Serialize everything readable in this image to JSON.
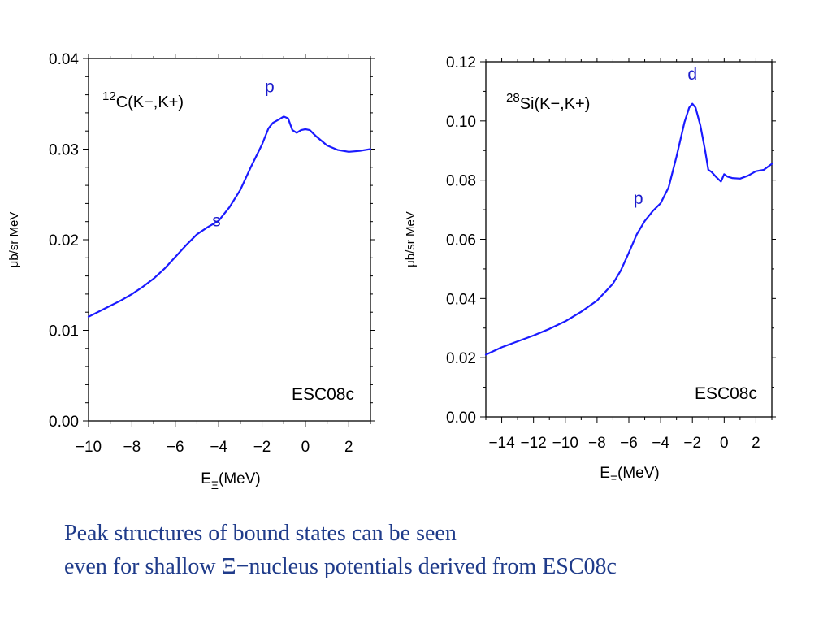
{
  "colors": {
    "curve": "#1a1aff",
    "peak_label": "#1a1acc",
    "caption": "#1f3b8a",
    "axis": "#000000"
  },
  "caption": {
    "line1": "Peak structures of bound states can be seen",
    "line2": "even for shallow Ξ−nucleus potentials derived from ESC08c"
  },
  "chart_data": [
    {
      "type": "line",
      "title_mass": "12",
      "title_rest": "C(K−,K+)",
      "xlabel_main": "E",
      "xlabel_sub": "Ξ",
      "xlabel_unit": "(MeV)",
      "ylabel": "μb/sr MeV",
      "model_label": "ESC08c",
      "xlim": [
        -10,
        3
      ],
      "ylim": [
        0,
        0.04
      ],
      "xticks": [
        "−10",
        "−8",
        "−6",
        "−4",
        "−2",
        "0",
        "2"
      ],
      "yticks": [
        "0.00",
        "0.01",
        "0.02",
        "0.03",
        "0.04"
      ],
      "grid": false,
      "peak_labels": [
        {
          "text": "s",
          "x": -4.1,
          "y": 0.0215
        },
        {
          "text": "p",
          "x": -1.65,
          "y": 0.0363
        }
      ],
      "series": [
        {
          "x": [
            -10,
            -9.5,
            -9,
            -8.5,
            -8,
            -7.5,
            -7,
            -6.5,
            -6,
            -5.5,
            -5,
            -4.5,
            -4,
            -3.5,
            -3,
            -2.5,
            -2,
            -1.7,
            -1.5,
            -1.35,
            -1.2,
            -1,
            -0.8,
            -0.6,
            -0.4,
            -0.2,
            0,
            0.2,
            0.5,
            1,
            1.5,
            2,
            2.5,
            3
          ],
          "y": [
            0.0115,
            0.0121,
            0.0127,
            0.0133,
            0.014,
            0.0148,
            0.0157,
            0.0168,
            0.0181,
            0.0194,
            0.0206,
            0.0214,
            0.0221,
            0.0236,
            0.0255,
            0.0281,
            0.0305,
            0.0323,
            0.0329,
            0.0331,
            0.0333,
            0.0336,
            0.0334,
            0.0321,
            0.0318,
            0.0321,
            0.0322,
            0.0321,
            0.0314,
            0.0304,
            0.0299,
            0.0297,
            0.0298,
            0.03
          ]
        }
      ]
    },
    {
      "type": "line",
      "title_mass": "28",
      "title_rest": "Si(K−,K+)",
      "xlabel_main": "E",
      "xlabel_sub": "Ξ",
      "xlabel_unit": "(MeV)",
      "ylabel": "μb/sr MeV",
      "model_label": "ESC08c",
      "xlim": [
        -15,
        3
      ],
      "ylim": [
        0,
        0.12
      ],
      "xticks": [
        "−14",
        "−12",
        "−10",
        "−8",
        "−6",
        "−4",
        "−2",
        "0",
        "2"
      ],
      "yticks": [
        "0.00",
        "0.02",
        "0.04",
        "0.06",
        "0.08",
        "0.10",
        "0.12"
      ],
      "grid": false,
      "peak_labels": [
        {
          "text": "p",
          "x": -5.4,
          "y": 0.072
        },
        {
          "text": "d",
          "x": -2.0,
          "y": 0.114
        }
      ],
      "series": [
        {
          "x": [
            -15,
            -14,
            -13,
            -12,
            -11,
            -10,
            -9,
            -8,
            -7,
            -6.5,
            -6,
            -5.5,
            -5,
            -4.5,
            -4,
            -3.5,
            -3,
            -2.5,
            -2.2,
            -2,
            -1.8,
            -1.5,
            -1.2,
            -1,
            -0.8,
            -0.5,
            -0.2,
            0,
            0.2,
            0.5,
            1,
            1.5,
            2,
            2.5,
            3
          ],
          "y": [
            0.021,
            0.0235,
            0.0255,
            0.0275,
            0.0297,
            0.0323,
            0.0355,
            0.0393,
            0.045,
            0.0495,
            0.0555,
            0.0617,
            0.0662,
            0.0695,
            0.0722,
            0.0775,
            0.088,
            0.0995,
            0.1045,
            0.1058,
            0.1045,
            0.0985,
            0.09,
            0.0835,
            0.0828,
            0.081,
            0.0795,
            0.082,
            0.0812,
            0.0807,
            0.0805,
            0.0815,
            0.083,
            0.0835,
            0.0855
          ]
        }
      ]
    }
  ]
}
